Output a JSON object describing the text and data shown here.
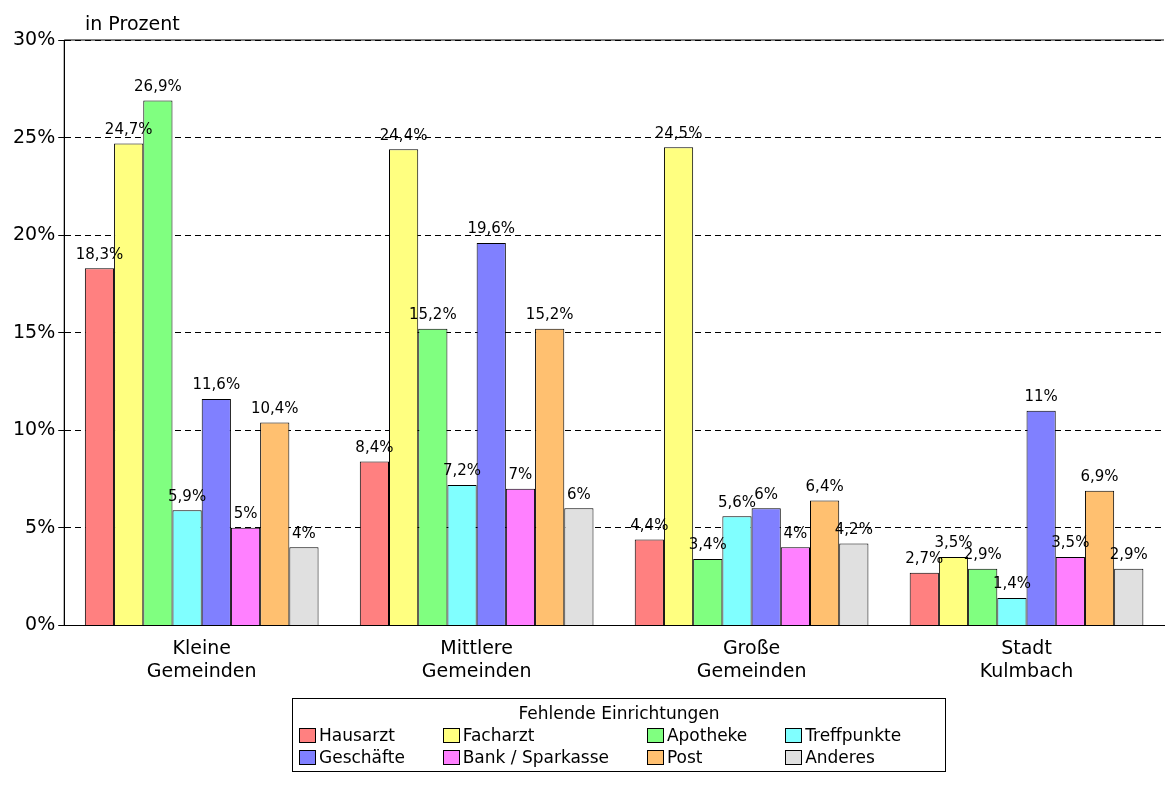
{
  "chart_data": {
    "type": "bar",
    "ylabel": "in Prozent",
    "legend_title": "Fehlende Einrichtungen",
    "legend": "bottom",
    "grid": "y",
    "categories": [
      "Kleine Gemeinden",
      "Mittlere Gemeinden",
      "Große Gemeinden",
      "Stadt Kulmbach"
    ],
    "ylim": [
      0,
      30
    ],
    "yticks": [
      {
        "value": 0,
        "label": "0%"
      },
      {
        "value": 5,
        "label": "5%"
      },
      {
        "value": 10,
        "label": "10%"
      },
      {
        "value": 15,
        "label": "15%"
      },
      {
        "value": 20,
        "label": "20%"
      },
      {
        "value": 25,
        "label": "25%"
      },
      {
        "value": 30,
        "label": "30%"
      }
    ],
    "series": [
      {
        "name": "Hausarzt",
        "color": "#ff8080",
        "values": [
          18.3,
          8.4,
          4.4,
          2.7
        ],
        "value_labels": [
          "18,3%",
          "8,4%",
          "4,4%",
          "2,7%"
        ]
      },
      {
        "name": "Facharzt",
        "color": "#ffff80",
        "values": [
          24.7,
          24.4,
          24.5,
          3.5
        ],
        "value_labels": [
          "24,7%",
          "24,4%",
          "24,5%",
          "3,5%"
        ]
      },
      {
        "name": "Apotheke",
        "color": "#80ff80",
        "values": [
          26.9,
          15.2,
          3.4,
          2.9
        ],
        "value_labels": [
          "26,9%",
          "15,2%",
          "3,4%",
          "2,9%"
        ]
      },
      {
        "name": "Treffpunkte",
        "color": "#80ffff",
        "values": [
          5.9,
          7.2,
          5.6,
          1.4
        ],
        "value_labels": [
          "5,9%",
          "7,2%",
          "5,6%",
          "1,4%"
        ]
      },
      {
        "name": "Geschäfte",
        "color": "#8080ff",
        "values": [
          11.6,
          19.6,
          6,
          11
        ],
        "value_labels": [
          "11,6%",
          "19,6%",
          "6%",
          "11%"
        ]
      },
      {
        "name": "Bank / Sparkasse",
        "color": "#ff80ff",
        "values": [
          5,
          7,
          4,
          3.5
        ],
        "value_labels": [
          "5%",
          "7%",
          "4%",
          "3,5%"
        ]
      },
      {
        "name": "Post",
        "color": "#ffc070",
        "values": [
          10.4,
          15.2,
          6.4,
          6.9
        ],
        "value_labels": [
          "10,4%",
          "15,2%",
          "6,4%",
          "6,9%"
        ]
      },
      {
        "name": "Anderes",
        "color": "#e0e0e0",
        "values": [
          4,
          6,
          4.2,
          2.9
        ],
        "value_labels": [
          "4%",
          "6%",
          "4,2%",
          "2,9%"
        ]
      }
    ]
  }
}
